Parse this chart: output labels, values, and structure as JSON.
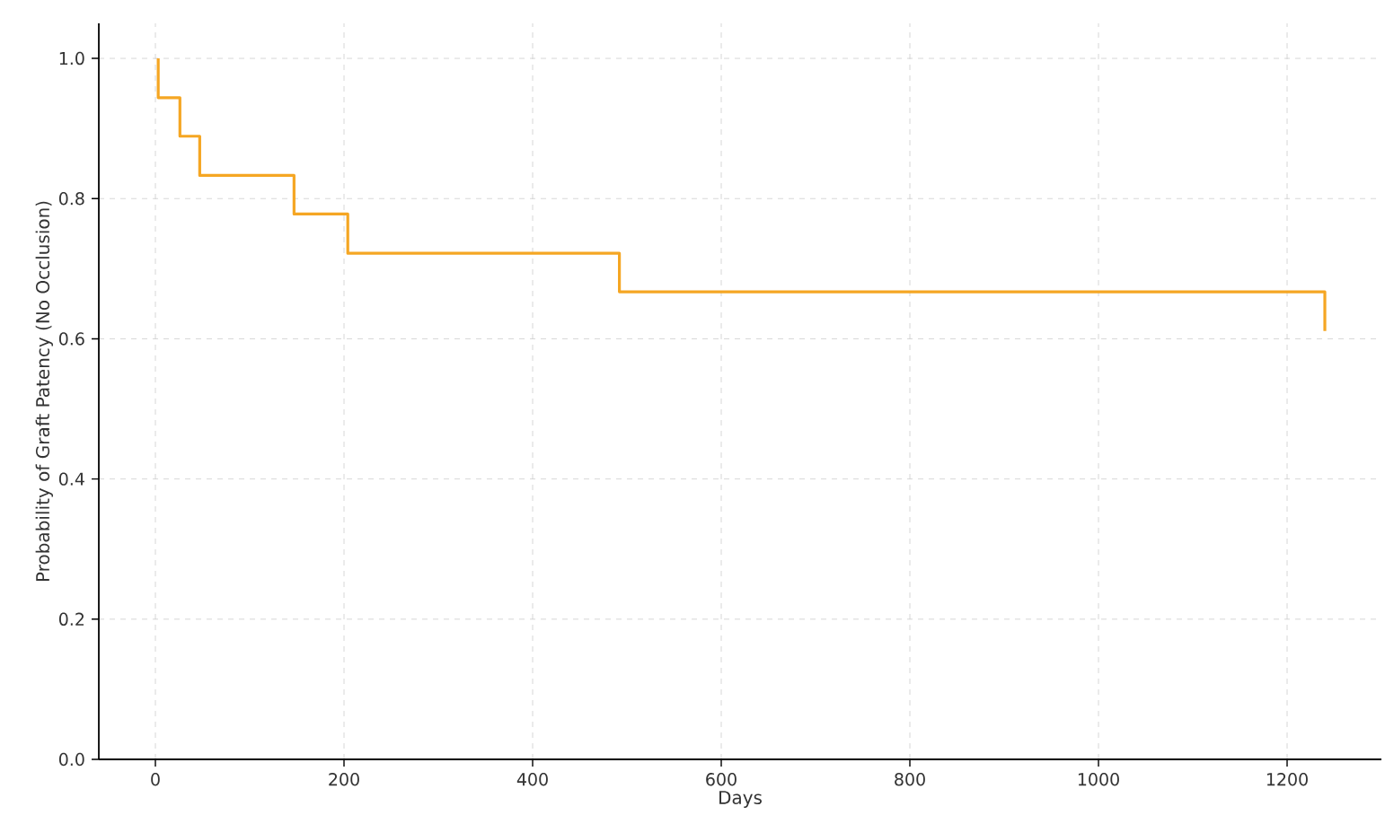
{
  "chart_data": {
    "type": "step",
    "xlabel": "Days",
    "ylabel": "Probability of Graft Patency (No Occlusion)",
    "series": [
      {
        "color": "#f5a623",
        "x": [
          3,
          3,
          26,
          47,
          147,
          204,
          492,
          1240,
          1240
        ],
        "values": [
          1.0,
          0.944,
          0.889,
          0.833,
          0.778,
          0.722,
          0.667,
          0.667,
          0.611
        ]
      }
    ],
    "xlim": [
      -60,
      1300
    ],
    "ylim": [
      0,
      1.05
    ],
    "xticks": [
      0,
      200,
      400,
      600,
      800,
      1000,
      1200
    ],
    "yticks": [
      {
        "value": 0,
        "label": "0.0"
      },
      {
        "value": 0.2,
        "label": "0.2"
      },
      {
        "value": 0.4,
        "label": "0.4"
      },
      {
        "value": 0.6,
        "label": "0.6"
      },
      {
        "value": 0.8,
        "label": "0.8"
      },
      {
        "value": 1.0,
        "label": "1.0"
      }
    ],
    "grid": true
  }
}
